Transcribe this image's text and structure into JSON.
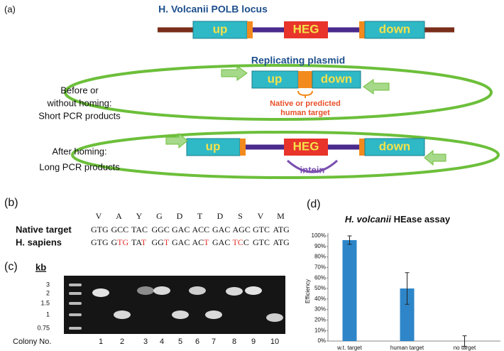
{
  "panel_a": {
    "label": "(a)",
    "locus_title": "H. Volcanii POLB locus",
    "up": "up",
    "heg": "HEG",
    "down": "down",
    "plasmid_title": "Replicating plasmid",
    "target_note": [
      "Native or predicted",
      "human target"
    ],
    "before_label": [
      "Before or",
      "without homing:",
      "Short PCR products"
    ],
    "after_label": [
      "After homing:",
      "Long PCR products"
    ],
    "intein": "intein"
  },
  "panel_b": {
    "label": "(b)",
    "amino_acids": [
      "V",
      "A",
      "Y",
      "G",
      "D",
      "T",
      "D",
      "S",
      "V",
      "M"
    ],
    "native": {
      "name": "Native target",
      "codons": [
        "GTG",
        "GCC",
        "TAC",
        "GGC",
        "GAC",
        "ACC",
        "GAC",
        "AGC",
        "GTC",
        "ATG"
      ]
    },
    "human": {
      "name": "H. sapiens",
      "codons": [
        [
          {
            "text": "GTG"
          }
        ],
        [
          {
            "text": "G"
          },
          {
            "text": "TG",
            "mutated": true
          }
        ],
        [
          {
            "text": "TA"
          },
          {
            "text": "T",
            "mutated": true
          }
        ],
        [
          {
            "text": "GG"
          },
          {
            "text": "T",
            "mutated": true
          }
        ],
        [
          {
            "text": "GAC"
          }
        ],
        [
          {
            "text": "AC"
          },
          {
            "text": "T",
            "mutated": true
          }
        ],
        [
          {
            "text": "GAC"
          }
        ],
        [
          {
            "text": "TC",
            "mutated": true
          },
          {
            "text": "C"
          }
        ],
        [
          {
            "text": "GTC"
          }
        ],
        [
          {
            "text": "ATG"
          }
        ]
      ]
    }
  },
  "panel_c": {
    "label": "(c)",
    "unit": "kb",
    "size_labels": [
      "3",
      "2",
      "1.5",
      "1",
      "0.75"
    ],
    "axis_label": "Colony No.",
    "lanes": [
      "1",
      "2",
      "3",
      "4",
      "5",
      "6",
      "7",
      "8",
      "9",
      "10"
    ]
  },
  "panel_d": {
    "label": "(d)",
    "chart_data": {
      "type": "bar",
      "title_parts": [
        {
          "text": "H. volcanii",
          "italic": true
        },
        {
          "text": " HEase assay"
        }
      ],
      "y_label": "Efficiency",
      "categories": [
        "w.t. target",
        "human target",
        "no target"
      ],
      "values": [
        96,
        50,
        0
      ],
      "errors": [
        4,
        15,
        5
      ],
      "color": "#2e86c8",
      "ylim": [
        0,
        100
      ],
      "yticks": [
        {
          "value": 0,
          "label": "0%"
        },
        {
          "value": 10,
          "label": "10%"
        },
        {
          "value": 20,
          "label": "20%"
        },
        {
          "value": 30,
          "label": "30%"
        },
        {
          "value": 40,
          "label": "40%"
        },
        {
          "value": 50,
          "label": "50%"
        },
        {
          "value": 60,
          "label": "60%"
        },
        {
          "value": 70,
          "label": "70%"
        },
        {
          "value": 80,
          "label": "80%"
        },
        {
          "value": 90,
          "label": "90%"
        },
        {
          "value": 100,
          "label": "100%"
        }
      ]
    }
  }
}
